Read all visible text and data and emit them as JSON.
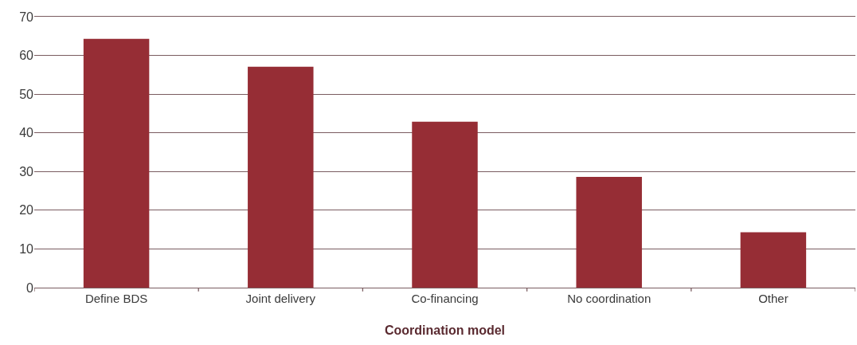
{
  "chart_data": {
    "type": "bar",
    "xlabel": "Coordination model",
    "categories": [
      "Define BDS",
      "Joint delivery",
      "Co-financing",
      "No coordination",
      "Other"
    ],
    "values": [
      64.3,
      57.1,
      42.9,
      28.6,
      14.3
    ],
    "color": "#962d35",
    "ylim": [
      0,
      70
    ],
    "yticks": [
      0,
      10,
      20,
      30,
      40,
      50,
      60,
      70
    ],
    "grid": "y"
  }
}
